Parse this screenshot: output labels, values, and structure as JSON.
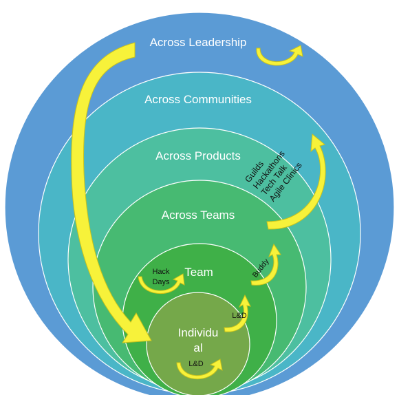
{
  "rings": {
    "leadership": {
      "label": "Across Leadership",
      "color": "#5b9bd5"
    },
    "communities": {
      "label": "Across Communities",
      "color": "#4ab6c7"
    },
    "products": {
      "label": "Across Products",
      "color": "#4dbfa0"
    },
    "teams": {
      "label": "Across Teams",
      "color": "#47ba72"
    },
    "team": {
      "label": "Team",
      "color": "#3fb048"
    },
    "individual": {
      "label_line1": "Individu",
      "label_line2": "al",
      "color": "#75a84a"
    }
  },
  "annotations": {
    "individual_ld": "L&D",
    "team_ld": "L&D",
    "buddy": "Buddy",
    "hack_days_line1": "Hack",
    "hack_days_line2": "Days",
    "practices": [
      "Guilds",
      "Hackathons",
      "Tech Talk",
      "Agile Clinics"
    ]
  },
  "arrow_color": "#f7f23a",
  "arrow_outline": "#c9c21a",
  "ring_stroke": "#ffffff"
}
